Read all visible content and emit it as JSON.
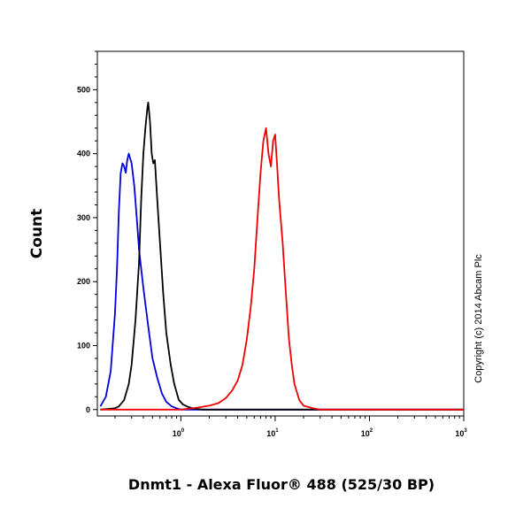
{
  "chart_data": {
    "type": "line",
    "xlabel": "Dnmt1 - Alexa Fluor® 488 (525/30 BP)",
    "ylabel": "Count",
    "xscale": "log",
    "xlim": [
      0.13,
      1000
    ],
    "ylim": [
      -10,
      560
    ],
    "x_ticks": [
      {
        "value": 1,
        "base": "10",
        "exp": "0"
      },
      {
        "value": 10,
        "base": "10",
        "exp": "1"
      },
      {
        "value": 100,
        "base": "10",
        "exp": "2"
      },
      {
        "value": 1000,
        "base": "10",
        "exp": "3"
      }
    ],
    "y_ticks": [
      {
        "value": 0,
        "label": "0"
      },
      {
        "value": 100,
        "label": "100"
      },
      {
        "value": 200,
        "label": "200"
      },
      {
        "value": 300,
        "label": "300"
      },
      {
        "value": 400,
        "label": "400"
      },
      {
        "value": 500,
        "label": "500"
      }
    ],
    "grid": false,
    "legend": "none",
    "annotation": "Copyright (c) 2014 Abcam Plc",
    "series": [
      {
        "color": "#0000dd",
        "x": [
          0.14,
          0.16,
          0.18,
          0.2,
          0.21,
          0.22,
          0.23,
          0.24,
          0.25,
          0.26,
          0.27,
          0.28,
          0.3,
          0.32,
          0.34,
          0.36,
          0.4,
          0.45,
          0.5,
          0.56,
          0.63,
          0.7,
          0.8,
          0.9,
          1.0,
          1.2,
          1.5,
          2,
          5,
          20,
          100,
          1000
        ],
        "y": [
          5,
          20,
          60,
          150,
          220,
          310,
          370,
          385,
          380,
          370,
          390,
          400,
          385,
          350,
          300,
          250,
          190,
          130,
          80,
          50,
          25,
          12,
          5,
          2,
          0,
          0,
          0,
          0,
          0,
          0,
          0,
          0
        ]
      },
      {
        "color": "#000000",
        "x": [
          0.14,
          0.2,
          0.22,
          0.25,
          0.28,
          0.3,
          0.33,
          0.36,
          0.38,
          0.4,
          0.42,
          0.44,
          0.45,
          0.47,
          0.49,
          0.51,
          0.53,
          0.56,
          0.6,
          0.65,
          0.7,
          0.78,
          0.85,
          0.95,
          1.05,
          1.2,
          1.4,
          1.7,
          2,
          5,
          20,
          100,
          1000
        ],
        "y": [
          0,
          2,
          5,
          15,
          40,
          70,
          140,
          230,
          330,
          400,
          440,
          470,
          480,
          450,
          400,
          385,
          390,
          330,
          260,
          180,
          120,
          70,
          40,
          15,
          8,
          4,
          1,
          0,
          0,
          0,
          0,
          0,
          0
        ]
      },
      {
        "color": "#ee0000",
        "x": [
          0.14,
          1,
          1.5,
          2,
          2.5,
          3,
          3.5,
          4,
          4.5,
          5,
          5.5,
          6,
          6.5,
          7,
          7.5,
          8,
          8.5,
          9,
          9.5,
          10,
          10.5,
          11,
          12,
          13,
          14,
          15,
          16,
          18,
          20,
          25,
          30,
          50,
          100,
          1000
        ],
        "y": [
          0,
          0,
          3,
          6,
          10,
          18,
          30,
          45,
          70,
          110,
          160,
          220,
          300,
          370,
          420,
          440,
          400,
          380,
          420,
          430,
          380,
          330,
          260,
          180,
          110,
          70,
          40,
          15,
          6,
          2,
          0,
          0,
          0,
          0
        ]
      }
    ]
  }
}
